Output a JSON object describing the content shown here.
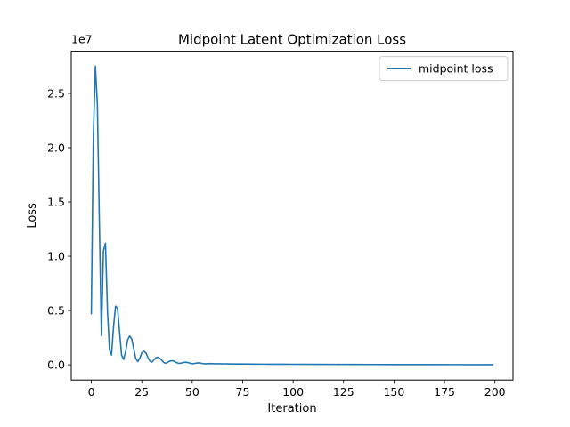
{
  "chart_data": {
    "type": "line",
    "title": "Midpoint Latent Optimization Loss",
    "xlabel": "Iteration",
    "ylabel": "Loss",
    "y_offset_label": "1e7",
    "xlim": [
      -9.95,
      208.95
    ],
    "ylim": [
      -1400000,
      28880000
    ],
    "x_ticks": [
      0,
      25,
      50,
      75,
      100,
      125,
      150,
      175,
      200
    ],
    "y_ticks": [
      0,
      5000000,
      10000000,
      15000000,
      20000000,
      25000000
    ],
    "y_tick_labels": [
      "0.0",
      "0.5",
      "1.0",
      "1.5",
      "2.0",
      "2.5"
    ],
    "legend_position": "upper right",
    "grid": false,
    "series": [
      {
        "name": "midpoint loss",
        "color": "#1f77b4",
        "x": [
          0,
          1,
          2,
          3,
          4,
          5,
          6,
          7,
          8,
          9,
          10,
          11,
          12,
          13,
          14,
          15,
          16,
          17,
          18,
          19,
          20,
          21,
          22,
          23,
          24,
          25,
          26,
          27,
          28,
          29,
          30,
          31,
          32,
          33,
          34,
          35,
          36,
          37,
          38,
          39,
          40,
          41,
          42,
          43,
          44,
          45,
          46,
          47,
          48,
          49,
          50,
          51,
          52,
          53,
          54,
          55,
          56,
          57,
          58,
          59,
          60,
          62,
          64,
          66,
          68,
          70,
          75,
          80,
          85,
          90,
          95,
          100,
          110,
          120,
          130,
          140,
          150,
          160,
          170,
          180,
          190,
          199
        ],
        "y": [
          4700000,
          21000000,
          27500000,
          24000000,
          13000000,
          2700000,
          10500000,
          11200000,
          5000000,
          1400000,
          900000,
          3500000,
          5400000,
          5200000,
          3000000,
          900000,
          500000,
          1200000,
          2300000,
          2650000,
          2400000,
          1500000,
          600000,
          300000,
          600000,
          1100000,
          1250000,
          1100000,
          700000,
          350000,
          250000,
          450000,
          650000,
          700000,
          600000,
          400000,
          200000,
          150000,
          250000,
          350000,
          380000,
          330000,
          220000,
          150000,
          140000,
          180000,
          230000,
          240000,
          200000,
          140000,
          110000,
          120000,
          160000,
          180000,
          160000,
          120000,
          100000,
          100000,
          110000,
          120000,
          110000,
          95000,
          100000,
          90000,
          85000,
          80000,
          75000,
          65000,
          60000,
          55000,
          52000,
          50000,
          45000,
          40000,
          35000,
          30000,
          28000,
          25000,
          22000,
          20000,
          18000,
          15000
        ]
      }
    ]
  }
}
